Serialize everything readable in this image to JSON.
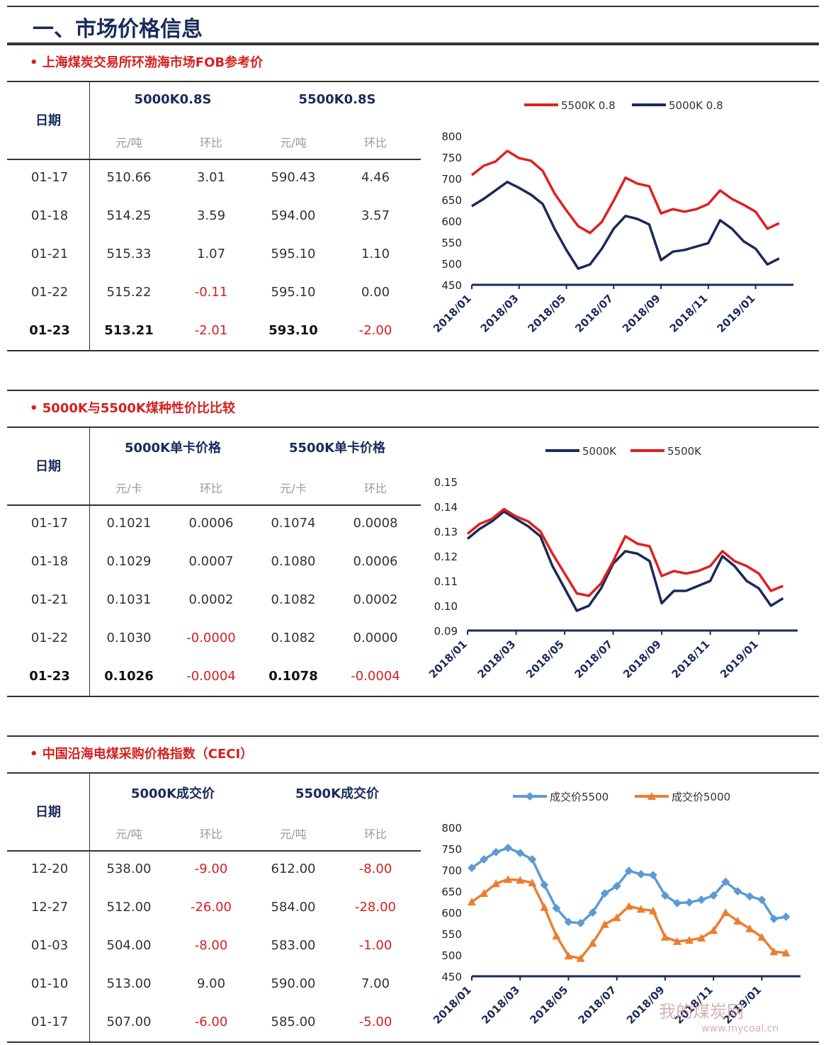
{
  "page_title": "一、市场价格信息",
  "sections": [
    {
      "heading": "• 上海煤炭交易所环渤海市场FOB参考价",
      "date_label": "日期",
      "col_groups": [
        "5000K0.8S",
        "5500K0.8S"
      ],
      "units": [
        "元/吨",
        "环比",
        "元/吨",
        "环比"
      ],
      "rows": [
        {
          "date": "01-17",
          "v1": "510.66",
          "c1": "3.01",
          "v2": "590.43",
          "c2": "4.46"
        },
        {
          "date": "01-18",
          "v1": "514.25",
          "c1": "3.59",
          "v2": "594.00",
          "c2": "3.57"
        },
        {
          "date": "01-21",
          "v1": "515.33",
          "c1": "1.07",
          "v2": "595.10",
          "c2": "1.10"
        },
        {
          "date": "01-22",
          "v1": "515.22",
          "c1": "-0.11",
          "v2": "595.10",
          "c2": "0.00"
        },
        {
          "date": "01-23",
          "v1": "513.21",
          "c1": "-2.01",
          "v2": "593.10",
          "c2": "-2.00"
        }
      ]
    },
    {
      "heading": "• 5000K与5500K煤种性价比比较",
      "date_label": "日期",
      "col_groups": [
        "5000K单卡价格",
        "5500K单卡价格"
      ],
      "units": [
        "元/卡",
        "环比",
        "元/卡",
        "环比"
      ],
      "rows": [
        {
          "date": "01-17",
          "v1": "0.1021",
          "c1": "0.0006",
          "v2": "0.1074",
          "c2": "0.0008"
        },
        {
          "date": "01-18",
          "v1": "0.1029",
          "c1": "0.0007",
          "v2": "0.1080",
          "c2": "0.0006"
        },
        {
          "date": "01-21",
          "v1": "0.1031",
          "c1": "0.0002",
          "v2": "0.1082",
          "c2": "0.0002"
        },
        {
          "date": "01-22",
          "v1": "0.1030",
          "c1": "-0.0000",
          "v2": "0.1082",
          "c2": "0.0000"
        },
        {
          "date": "01-23",
          "v1": "0.1026",
          "c1": "-0.0004",
          "v2": "0.1078",
          "c2": "-0.0004"
        }
      ]
    },
    {
      "heading": "• 中国沿海电煤采购价格指数（CECI）",
      "date_label": "日期",
      "col_groups": [
        "5000K成交价",
        "5500K成交价"
      ],
      "units": [
        "元/吨",
        "环比",
        "元/吨",
        "环比"
      ],
      "rows": [
        {
          "date": "12-20",
          "v1": "538.00",
          "c1": "-9.00",
          "v2": "612.00",
          "c2": "-8.00"
        },
        {
          "date": "12-27",
          "v1": "512.00",
          "c1": "-26.00",
          "v2": "584.00",
          "c2": "-28.00"
        },
        {
          "date": "01-03",
          "v1": "504.00",
          "c1": "-8.00",
          "v2": "583.00",
          "c2": "-1.00"
        },
        {
          "date": "01-10",
          "v1": "513.00",
          "c1": "9.00",
          "v2": "590.00",
          "c2": "7.00"
        },
        {
          "date": "01-17",
          "v1": "507.00",
          "c1": "-6.00",
          "v2": "585.00",
          "c2": "-5.00"
        }
      ]
    }
  ],
  "colors": {
    "red": "#e02020",
    "navy": "#1a2a5a",
    "blue": "#5b9bd5",
    "orange": "#ed7d31",
    "title_navy": "#1a2a5a",
    "heading_red": "#d42020"
  },
  "watermark": {
    "text": "我的煤炭网",
    "url": "www.mycoal.cn"
  },
  "chart_data": [
    {
      "type": "line",
      "x_ticks": [
        "2018/01",
        "2018/03",
        "2018/05",
        "2018/07",
        "2018/09",
        "2018/11",
        "2019/01"
      ],
      "ylim": [
        450,
        800
      ],
      "y_ticks": [
        "450",
        "500",
        "550",
        "600",
        "650",
        "700",
        "750",
        "800"
      ],
      "x_months": [
        0,
        0.5,
        1,
        1.5,
        2,
        2.5,
        3,
        3.5,
        4,
        4.5,
        5,
        5.5,
        6,
        6.5,
        7,
        7.5,
        8,
        8.5,
        9,
        9.5,
        10,
        10.5,
        11,
        11.5,
        12,
        12.5,
        13
      ],
      "series": [
        {
          "name": "5500K 0.8",
          "color": "red",
          "values": [
            708,
            730,
            740,
            765,
            748,
            742,
            718,
            665,
            625,
            588,
            572,
            598,
            648,
            702,
            688,
            682,
            618,
            628,
            622,
            628,
            640,
            672,
            652,
            638,
            622,
            582,
            595
          ]
        },
        {
          "name": "5000K 0.8",
          "color": "navy",
          "values": [
            635,
            652,
            672,
            692,
            678,
            662,
            640,
            582,
            532,
            488,
            498,
            535,
            582,
            612,
            605,
            592,
            508,
            528,
            532,
            540,
            548,
            602,
            582,
            552,
            535,
            498,
            512
          ]
        }
      ]
    },
    {
      "type": "line",
      "x_ticks": [
        "2018/01",
        "2018/03",
        "2018/05",
        "2018/07",
        "2018/09",
        "2018/11",
        "2019/01"
      ],
      "ylim": [
        0.09,
        0.15
      ],
      "y_ticks": [
        "0.09",
        "0.10",
        "0.11",
        "0.12",
        "0.13",
        "0.14",
        "0.15"
      ],
      "x_months": [
        0,
        0.5,
        1,
        1.5,
        2,
        2.5,
        3,
        3.5,
        4,
        4.5,
        5,
        5.5,
        6,
        6.5,
        7,
        7.5,
        8,
        8.5,
        9,
        9.5,
        10,
        10.5,
        11,
        11.5,
        12,
        12.5,
        13
      ],
      "series": [
        {
          "name": "5000K",
          "color": "navy",
          "values": [
            0.127,
            0.131,
            0.134,
            0.138,
            0.135,
            0.132,
            0.128,
            0.116,
            0.107,
            0.098,
            0.1,
            0.107,
            0.117,
            0.122,
            0.121,
            0.118,
            0.101,
            0.106,
            0.106,
            0.108,
            0.11,
            0.12,
            0.116,
            0.11,
            0.107,
            0.1,
            0.103
          ]
        },
        {
          "name": "5500K",
          "color": "red",
          "values": [
            0.129,
            0.133,
            0.135,
            0.139,
            0.136,
            0.134,
            0.13,
            0.121,
            0.113,
            0.105,
            0.104,
            0.109,
            0.118,
            0.128,
            0.125,
            0.124,
            0.112,
            0.114,
            0.113,
            0.114,
            0.116,
            0.122,
            0.118,
            0.116,
            0.113,
            0.106,
            0.108
          ]
        }
      ]
    },
    {
      "type": "line",
      "x_ticks": [
        "2018/01",
        "2018/03",
        "2018/05",
        "2018/07",
        "2018/09",
        "2018/11",
        "2019/01"
      ],
      "ylim": [
        450,
        800
      ],
      "y_ticks": [
        "450",
        "500",
        "550",
        "600",
        "650",
        "700",
        "750",
        "800"
      ],
      "x_months": [
        0,
        0.5,
        1,
        1.5,
        2,
        2.5,
        3,
        3.5,
        4,
        4.5,
        5,
        5.5,
        6,
        6.5,
        7,
        7.5,
        8,
        8.5,
        9,
        9.5,
        10,
        10.5,
        11,
        11.5,
        12,
        12.5,
        13
      ],
      "series": [
        {
          "name": "成交价5500",
          "color": "blue",
          "marker": "diamond",
          "values": [
            705,
            725,
            742,
            752,
            740,
            725,
            665,
            610,
            578,
            575,
            600,
            645,
            662,
            698,
            690,
            688,
            640,
            622,
            624,
            630,
            640,
            672,
            650,
            638,
            630,
            585,
            590
          ]
        },
        {
          "name": "成交价5000",
          "color": "orange",
          "marker": "triangle",
          "values": [
            625,
            645,
            668,
            678,
            676,
            670,
            612,
            545,
            498,
            492,
            528,
            572,
            588,
            615,
            608,
            604,
            542,
            532,
            535,
            540,
            558,
            600,
            580,
            562,
            542,
            508,
            505
          ]
        }
      ]
    }
  ]
}
